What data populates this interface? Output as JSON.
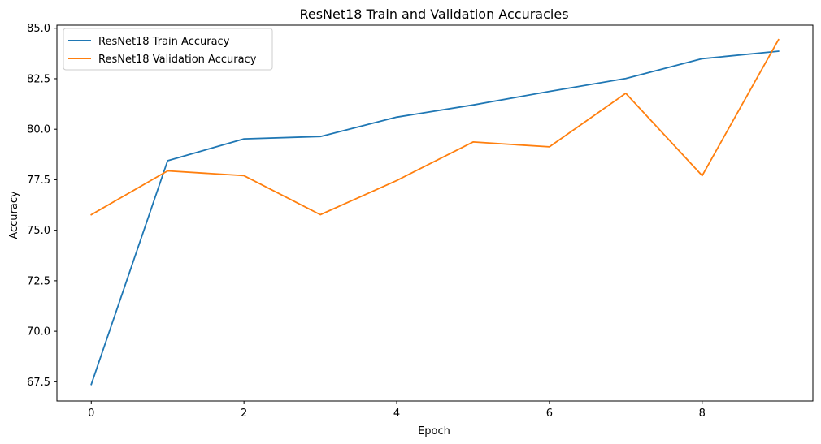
{
  "chart_data": {
    "type": "line",
    "title": "ResNet18 Train and Validation Accuracies",
    "xlabel": "Epoch",
    "ylabel": "Accuracy",
    "x": [
      0,
      1,
      2,
      3,
      4,
      5,
      6,
      7,
      8,
      9
    ],
    "xlim": [
      -0.45,
      9.45
    ],
    "ylim": [
      66.55,
      85.15
    ],
    "xticks": [
      0,
      2,
      4,
      6,
      8
    ],
    "yticks": [
      67.5,
      70.0,
      72.5,
      75.0,
      77.5,
      80.0,
      82.5,
      85.0
    ],
    "xtick_labels": [
      "0",
      "2",
      "4",
      "6",
      "8"
    ],
    "ytick_labels": [
      "67.5",
      "70.0",
      "72.5",
      "75.0",
      "77.5",
      "80.0",
      "82.5",
      "85.0"
    ],
    "grid": false,
    "legend_position": "top-left",
    "series": [
      {
        "name": "ResNet18 Train Accuracy",
        "color": "#1f77b4",
        "values": [
          67.37,
          78.44,
          79.52,
          79.64,
          80.6,
          81.2,
          81.87,
          82.51,
          83.49,
          83.86
        ]
      },
      {
        "name": "ResNet18 Validation Accuracy",
        "color": "#ff7f0e",
        "values": [
          75.77,
          77.94,
          77.7,
          75.77,
          77.46,
          79.37,
          79.13,
          81.78,
          77.7,
          84.43
        ]
      }
    ]
  }
}
